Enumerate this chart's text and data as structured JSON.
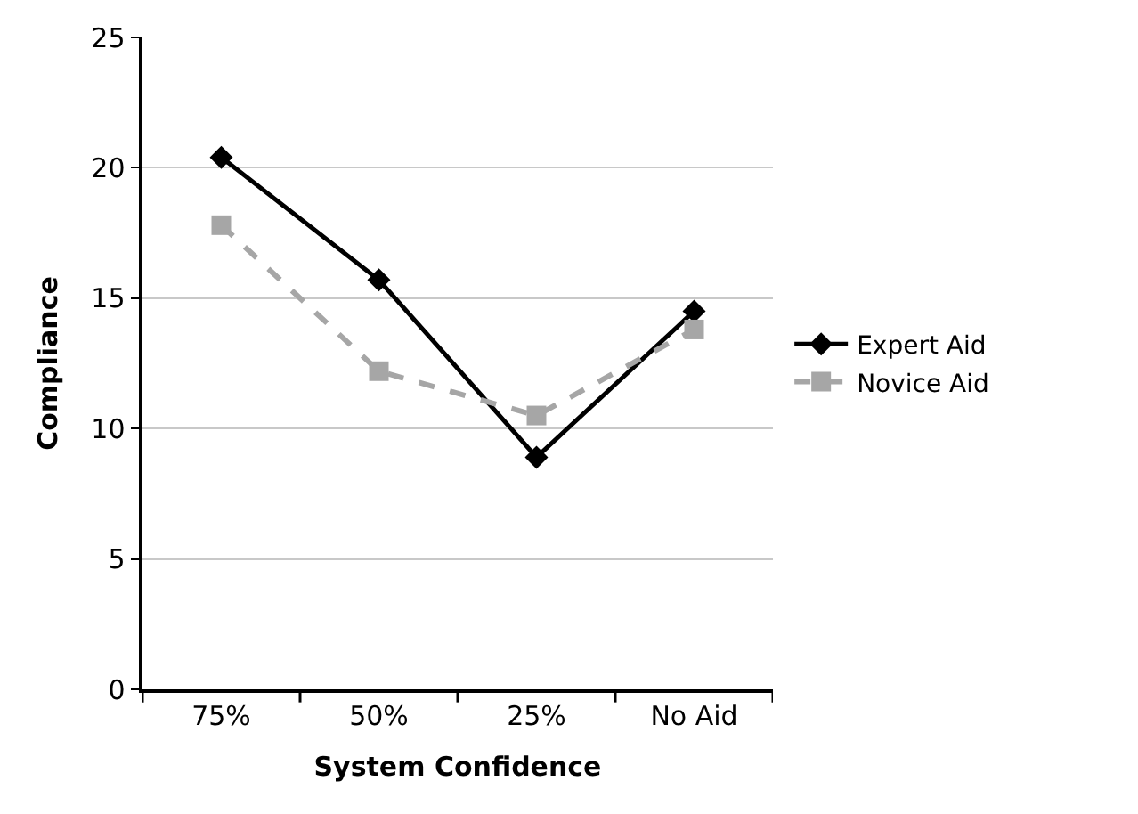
{
  "chart_data": {
    "type": "line",
    "xlabel": "System Confidence",
    "ylabel": "Compliance",
    "categories": [
      "75%",
      "50%",
      "25%",
      "No Aid"
    ],
    "series": [
      {
        "name": "Expert Aid",
        "color": "#000000",
        "values": [
          20.4,
          15.7,
          8.9,
          14.5
        ],
        "marker": "diamond",
        "line_style": "solid"
      },
      {
        "name": "Novice Aid",
        "color": "#a6a6a6",
        "values": [
          17.8,
          12.2,
          10.5,
          13.8
        ],
        "marker": "square",
        "line_style": "dashed"
      }
    ],
    "ylim": [
      0,
      25
    ],
    "yticks": [
      0,
      5,
      10,
      15,
      20,
      25
    ],
    "grid": "y",
    "legend": "right"
  }
}
